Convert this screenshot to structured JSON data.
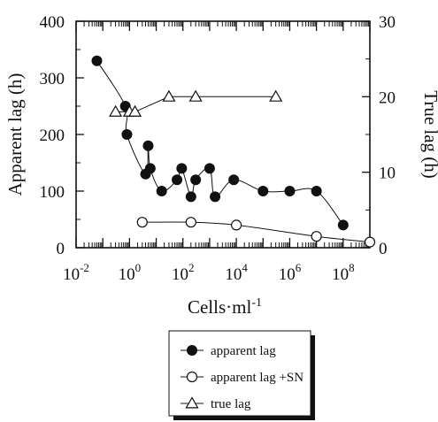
{
  "chart_data": {
    "type": "scatter",
    "xlabel": "Cells·ml",
    "xlabel_superscript": "-1",
    "ylabel_left": "Apparent lag (h)",
    "ylabel_right": "True lag (h)",
    "xscale": "log",
    "xlim": [
      0.01,
      1000000000
    ],
    "ylim_left": [
      0,
      400
    ],
    "ylim_right": [
      0,
      30
    ],
    "x_ticks": [
      {
        "base": "10",
        "exp": "-2",
        "value": 0.01
      },
      {
        "base": "10",
        "exp": "0",
        "value": 1
      },
      {
        "base": "10",
        "exp": "2",
        "value": 100
      },
      {
        "base": "10",
        "exp": "4",
        "value": 10000
      },
      {
        "base": "10",
        "exp": "6",
        "value": 1000000
      },
      {
        "base": "10",
        "exp": "8",
        "value": 100000000
      }
    ],
    "y_left_ticks": [
      "0",
      "100",
      "200",
      "300",
      "400"
    ],
    "y_right_ticks": [
      "0",
      "10",
      "20",
      "30"
    ],
    "grid": false,
    "legend_position": "below",
    "series": [
      {
        "name": "apparent lag",
        "axis": "left",
        "marker": "filled-circle",
        "color": "#111111",
        "x": [
          0.06,
          0.7,
          0.8,
          4,
          5,
          6,
          16,
          60,
          90,
          200,
          300,
          1000,
          1600,
          8000,
          100000,
          1000000,
          10000000,
          100000000
        ],
        "y": [
          330,
          250,
          200,
          130,
          180,
          140,
          100,
          120,
          140,
          90,
          120,
          140,
          90,
          120,
          100,
          100,
          100,
          40
        ]
      },
      {
        "name": "apparent lag +SN",
        "axis": "left",
        "marker": "open-circle",
        "color": "#111111",
        "x": [
          3,
          200,
          10000,
          10000000,
          1000000000
        ],
        "y": [
          45,
          45,
          40,
          20,
          10
        ]
      },
      {
        "name": "true lag",
        "axis": "right",
        "marker": "open-triangle",
        "color": "#111111",
        "x": [
          0.3,
          1,
          1.6,
          30,
          300,
          300000
        ],
        "y": [
          18,
          18,
          18,
          20,
          20,
          20
        ]
      }
    ]
  }
}
